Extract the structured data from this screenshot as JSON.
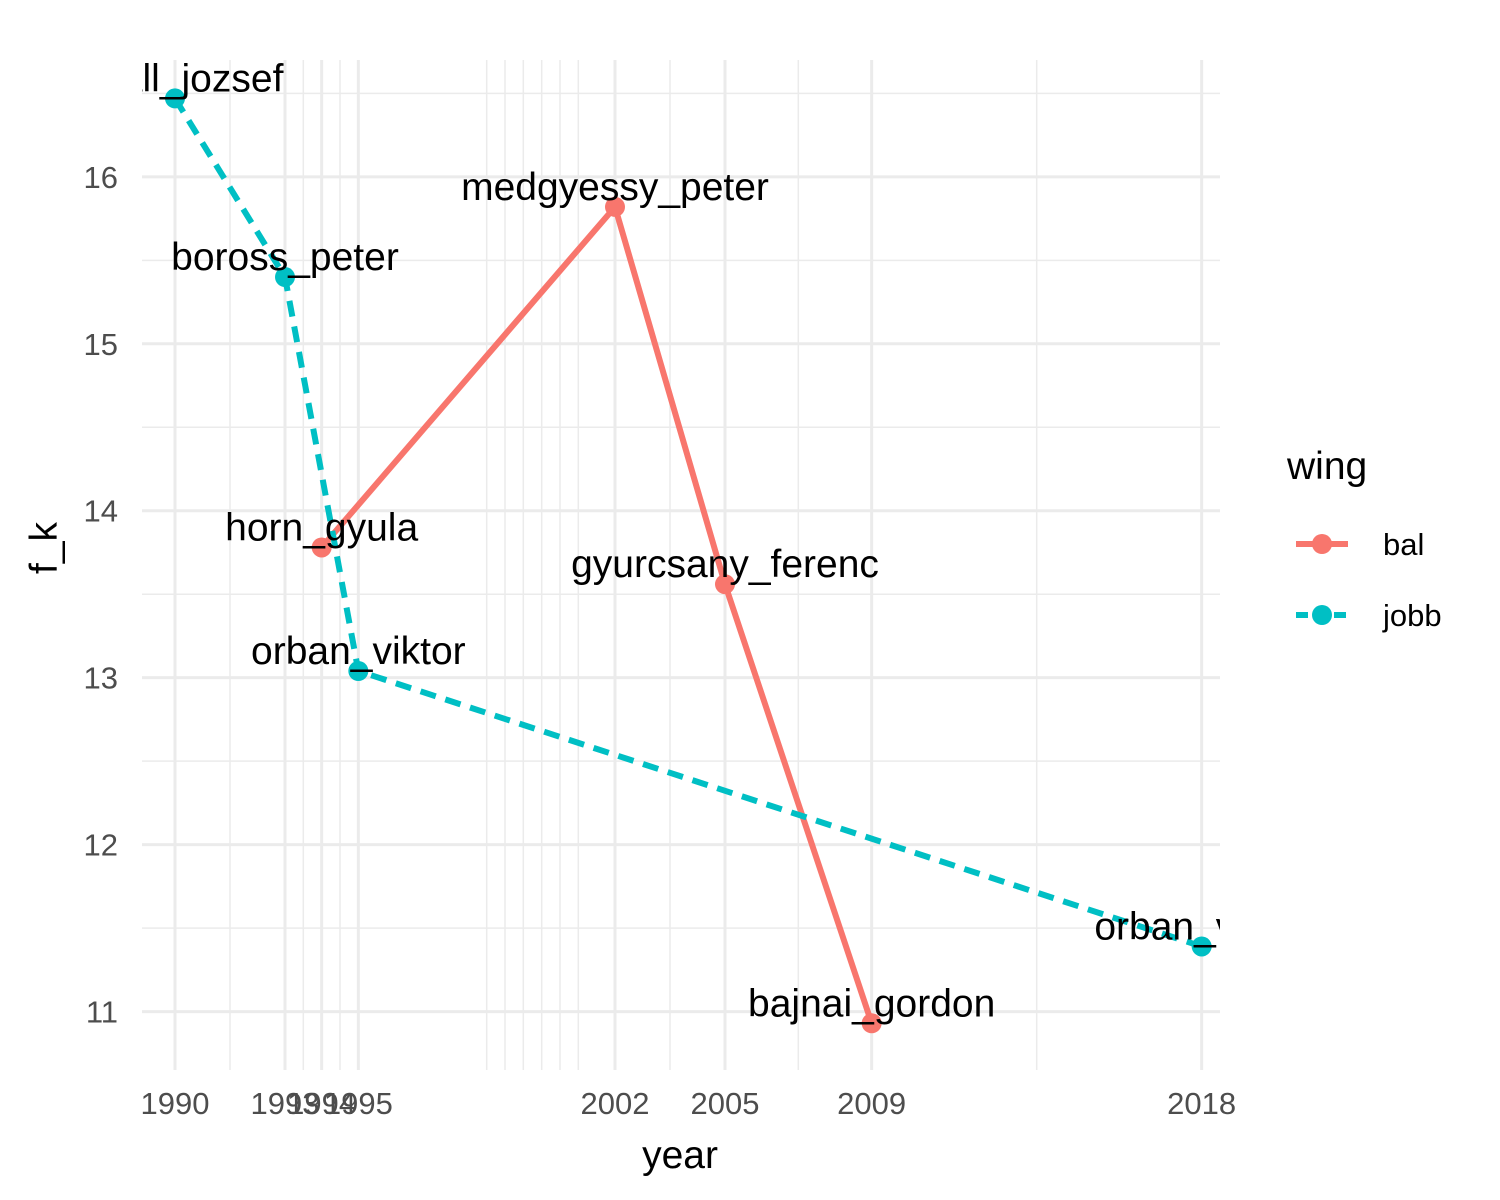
{
  "chart_data": {
    "type": "line",
    "xlabel": "year",
    "ylabel": "f_k",
    "xlim": [
      1989.1,
      2018.5
    ],
    "ylim": [
      10.65,
      16.7
    ],
    "x_major_ticks": [
      1990,
      1993,
      1994,
      1995,
      2002,
      2005,
      2009,
      2018
    ],
    "x_minor_ticks": [
      1991.5,
      1993.5,
      1994.5,
      1998.5,
      2003.5,
      2007,
      2013.5
    ],
    "x_extra_gridlines": [
      1999,
      1999.5,
      2000,
      2000.5,
      2001
    ],
    "y_major_ticks": [
      11,
      12,
      13,
      14,
      15,
      16
    ],
    "y_minor_ticks": [
      11.5,
      12.5,
      13.5,
      14.5,
      15.5,
      16.5
    ],
    "grid": true,
    "legend": {
      "title": "wing",
      "position": "right"
    },
    "series": [
      {
        "name": "bal",
        "color": "#F8766D",
        "line_style": "solid",
        "points": [
          {
            "x": 1994,
            "y": 13.78,
            "label": "horn_gyula"
          },
          {
            "x": 2002,
            "y": 15.82,
            "label": "medgyessy_peter"
          },
          {
            "x": 2005,
            "y": 13.56,
            "label": "gyurcsany_ferenc"
          },
          {
            "x": 2009,
            "y": 10.93,
            "label": "bajnai_gordon"
          }
        ]
      },
      {
        "name": "jobb",
        "color": "#00BFC4",
        "line_style": "dashed",
        "points": [
          {
            "x": 1990,
            "y": 16.47,
            "label": "antall_jozsef"
          },
          {
            "x": 1993,
            "y": 15.4,
            "label": "boross_peter"
          },
          {
            "x": 1995,
            "y": 13.04,
            "label": "orban_viktor"
          },
          {
            "x": 2018,
            "y": 11.39,
            "label": "orban_viktor"
          }
        ]
      }
    ]
  }
}
